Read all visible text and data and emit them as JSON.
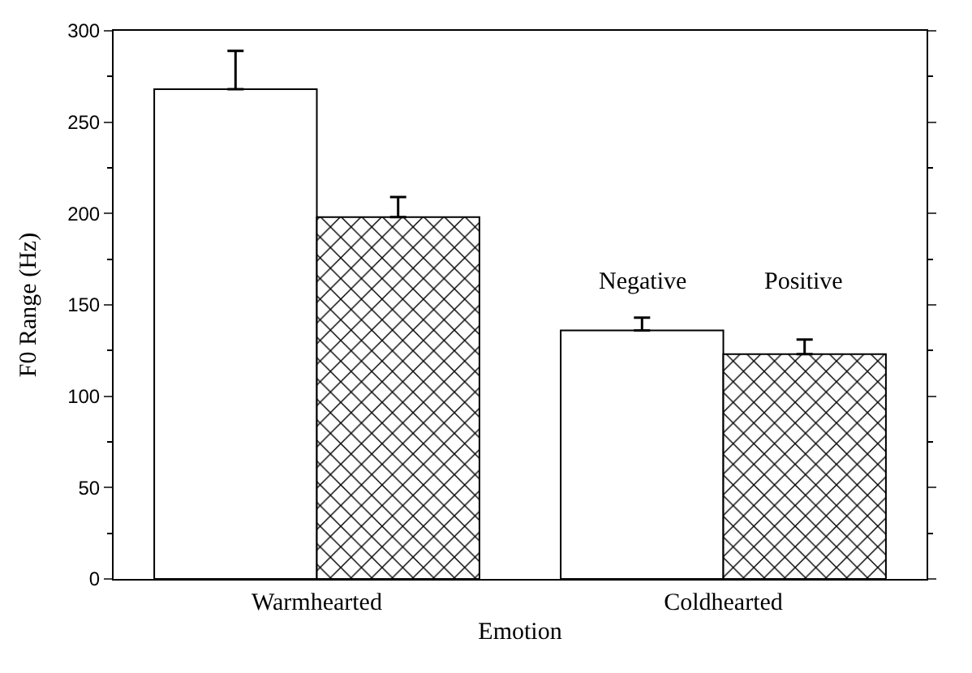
{
  "chart_data": {
    "type": "bar",
    "xlabel": "Emotion",
    "ylabel": "F0 Range (Hz)",
    "categories": [
      "Warmhearted",
      "Coldhearted"
    ],
    "series": [
      {
        "name": "Negative",
        "color": "#ffffff",
        "values": [
          268,
          136
        ],
        "errors": [
          [
            268,
            289
          ],
          [
            136,
            143
          ]
        ]
      },
      {
        "name": "Positive",
        "color": "#000000",
        "values": [
          198,
          123
        ],
        "errors": [
          [
            198,
            209
          ],
          [
            123,
            131
          ]
        ]
      }
    ],
    "ylim": [
      0,
      300
    ],
    "yticks": [
      0,
      50,
      100,
      150,
      200,
      250,
      300
    ],
    "legend": false
  }
}
